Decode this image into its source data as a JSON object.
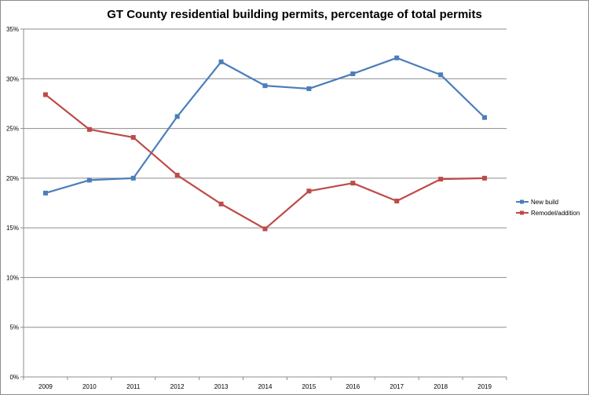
{
  "chart_data": {
    "type": "line",
    "title": "GT County residential building permits, percentage of total permits",
    "categories": [
      "2009",
      "2010",
      "2011",
      "2012",
      "2013",
      "2014",
      "2015",
      "2016",
      "2017",
      "2018",
      "2019"
    ],
    "series": [
      {
        "name": "New build",
        "color": "#4a7ebb",
        "values": [
          18.5,
          19.8,
          20.0,
          26.2,
          31.7,
          29.3,
          29.0,
          30.5,
          32.1,
          30.4,
          26.1
        ]
      },
      {
        "name": "Remodel/addition",
        "color": "#be4b48",
        "values": [
          28.4,
          24.9,
          24.1,
          20.3,
          17.4,
          14.9,
          18.7,
          19.5,
          17.7,
          19.9,
          20.0
        ]
      }
    ],
    "y_ticks": [
      "0%",
      "5%",
      "10%",
      "15%",
      "20%",
      "25%",
      "30%",
      "35%"
    ],
    "ylim": [
      0,
      35
    ],
    "y_unit": "%",
    "grid": "horizontal",
    "legend": "right"
  }
}
